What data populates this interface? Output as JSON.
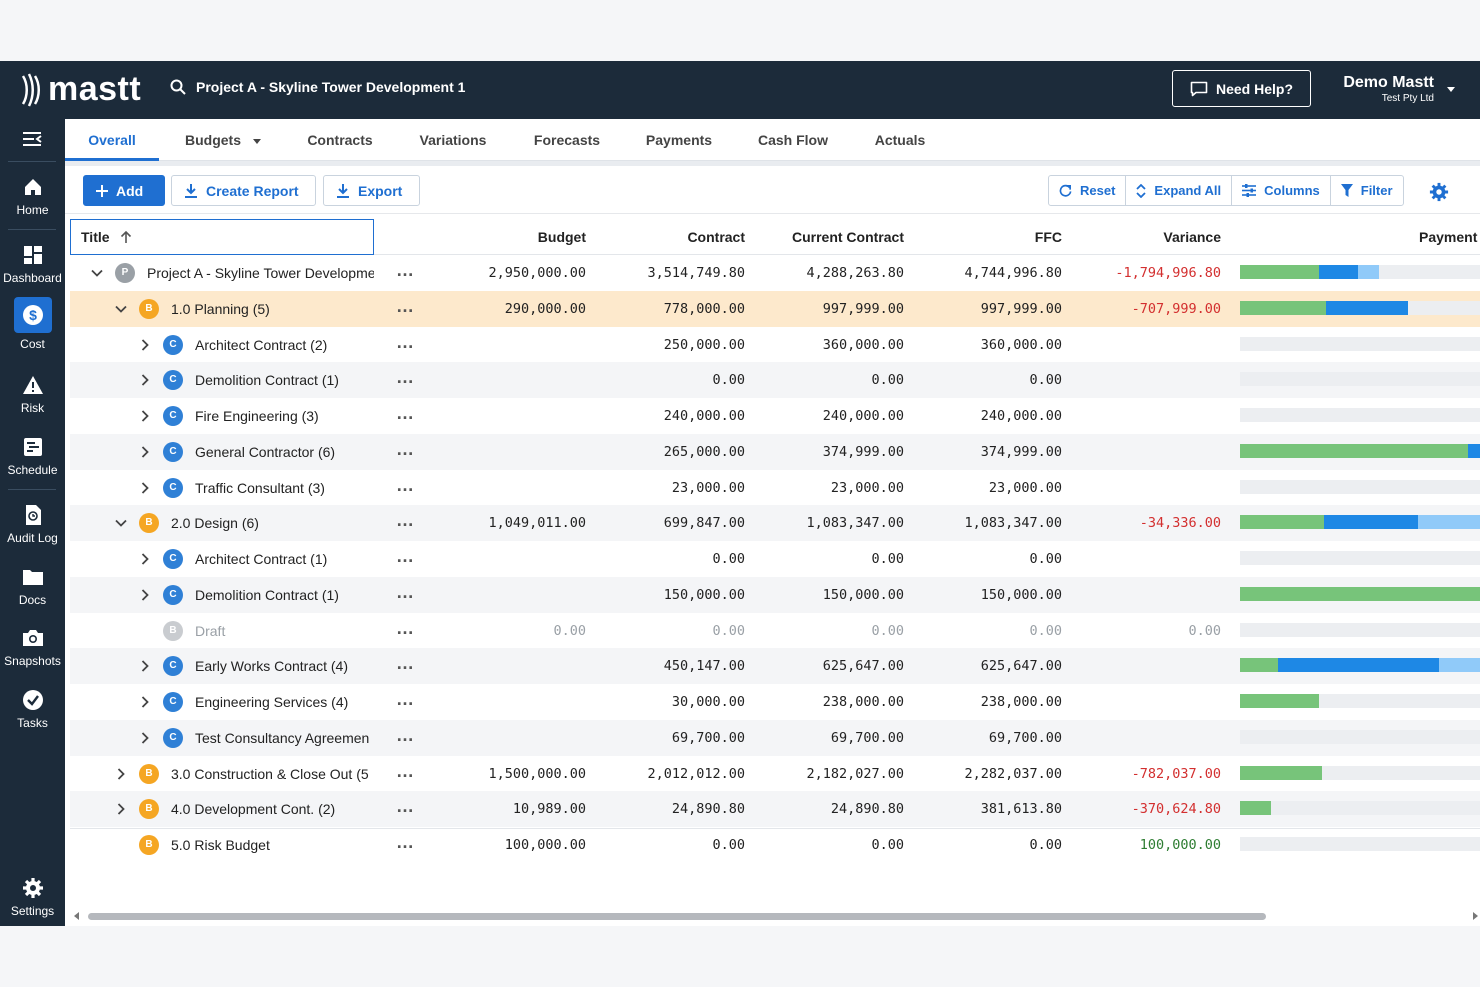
{
  "brand": {
    "logo_text": "mastt"
  },
  "header": {
    "project_name": "Project A - Skyline Tower Development 1",
    "help_label": "Need Help?",
    "user_name": "Demo Mastt",
    "user_org": "Test Pty Ltd"
  },
  "sidebar": {
    "items": [
      {
        "label": "Home",
        "icon": "home-icon"
      },
      {
        "label": "Dashboard",
        "icon": "dashboard-icon"
      },
      {
        "label": "Cost",
        "icon": "dollar-icon",
        "active": true
      },
      {
        "label": "Risk",
        "icon": "warning-icon"
      },
      {
        "label": "Schedule",
        "icon": "schedule-icon"
      },
      {
        "label": "Audit Log",
        "icon": "audit-log-icon"
      },
      {
        "label": "Docs",
        "icon": "folder-icon"
      },
      {
        "label": "Snapshots",
        "icon": "camera-icon"
      },
      {
        "label": "Tasks",
        "icon": "check-circle-icon"
      },
      {
        "label": "Settings",
        "icon": "gear-icon"
      }
    ]
  },
  "tabs": [
    {
      "label": "Overall",
      "active": true
    },
    {
      "label": "Budgets",
      "dropdown": true
    },
    {
      "label": "Contracts"
    },
    {
      "label": "Variations"
    },
    {
      "label": "Forecasts"
    },
    {
      "label": "Payments"
    },
    {
      "label": "Cash Flow"
    },
    {
      "label": "Actuals"
    }
  ],
  "toolbar": {
    "add_label": "Add",
    "create_report_label": "Create Report",
    "export_label": "Export",
    "reset_label": "Reset",
    "expand_all_label": "Expand All",
    "columns_label": "Columns",
    "filter_label": "Filter"
  },
  "colors": {
    "accent": "#1f6fd1",
    "bar_green": "#77c47a",
    "bar_blue": "#1e88e5",
    "bar_light_blue": "#90caf9",
    "negative": "#d32f2f",
    "positive": "#2e7d32"
  },
  "table": {
    "columns": [
      "Title",
      "Budget",
      "Contract",
      "Current Contract",
      "FFC",
      "Variance",
      "Payment"
    ],
    "rows": [
      {
        "level": 0,
        "chevron": "down",
        "badge": "P",
        "title": "Project A - Skyline Tower Developme",
        "budget": "2,950,000.00",
        "contract": "3,514,749.80",
        "current": "4,288,263.80",
        "ffc": "4,744,996.80",
        "variance": "-1,794,996.80",
        "variance_tone": "neg",
        "payment": [
          0.33,
          0.16,
          0.09
        ]
      },
      {
        "level": 1,
        "chevron": "down",
        "badge": "B",
        "title": "1.0 Planning  (5)",
        "budget": "290,000.00",
        "contract": "778,000.00",
        "current": "997,999.00",
        "ffc": "997,999.00",
        "variance": "-707,999.00",
        "variance_tone": "neg",
        "payment": [
          0.36,
          0.34,
          0.0
        ],
        "selected": true
      },
      {
        "level": 2,
        "chevron": "right",
        "badge": "C",
        "title": "Architect Contract  (2)",
        "budget": "",
        "contract": "250,000.00",
        "current": "360,000.00",
        "ffc": "360,000.00",
        "variance": "",
        "payment": [
          0,
          0,
          0
        ]
      },
      {
        "level": 2,
        "chevron": "right",
        "badge": "C",
        "title": "Demolition Contract  (1)",
        "budget": "",
        "contract": "0.00",
        "current": "0.00",
        "ffc": "0.00",
        "variance": "",
        "payment": [
          0,
          0,
          0
        ]
      },
      {
        "level": 2,
        "chevron": "right",
        "badge": "C",
        "title": "Fire Engineering  (3)",
        "budget": "",
        "contract": "240,000.00",
        "current": "240,000.00",
        "ffc": "240,000.00",
        "variance": "",
        "payment": [
          0,
          0,
          0
        ]
      },
      {
        "level": 2,
        "chevron": "right",
        "badge": "C",
        "title": "General Contractor  (6)",
        "budget": "",
        "contract": "265,000.00",
        "current": "374,999.00",
        "ffc": "374,999.00",
        "variance": "",
        "payment": [
          0.95,
          0.05,
          0
        ]
      },
      {
        "level": 2,
        "chevron": "right",
        "badge": "C",
        "title": "Traffic Consultant  (3)",
        "budget": "",
        "contract": "23,000.00",
        "current": "23,000.00",
        "ffc": "23,000.00",
        "variance": "",
        "payment": [
          0,
          0,
          0
        ]
      },
      {
        "level": 1,
        "chevron": "down",
        "badge": "B",
        "title": "2.0 Design  (6)",
        "budget": "1,049,011.00",
        "contract": "699,847.00",
        "current": "1,083,347.00",
        "ffc": "1,083,347.00",
        "variance": "-34,336.00",
        "variance_tone": "neg",
        "payment": [
          0.35,
          0.39,
          0.26
        ]
      },
      {
        "level": 2,
        "chevron": "right",
        "badge": "C",
        "title": "Architect Contract  (1)",
        "budget": "",
        "contract": "0.00",
        "current": "0.00",
        "ffc": "0.00",
        "variance": "",
        "payment": [
          0,
          0,
          0
        ]
      },
      {
        "level": 2,
        "chevron": "right",
        "badge": "C",
        "title": "Demolition Contract  (1)",
        "budget": "",
        "contract": "150,000.00",
        "current": "150,000.00",
        "ffc": "150,000.00",
        "variance": "",
        "payment": [
          1.0,
          0,
          0
        ]
      },
      {
        "level": 2,
        "chevron": "none",
        "badge": "B",
        "badge_style": "D",
        "title": "Draft",
        "muted": true,
        "budget": "0.00",
        "contract": "0.00",
        "current": "0.00",
        "ffc": "0.00",
        "variance": "0.00",
        "variance_tone": "muted",
        "payment": [
          0,
          0,
          0
        ]
      },
      {
        "level": 2,
        "chevron": "right",
        "badge": "C",
        "title": "Early Works Contract  (4)",
        "budget": "",
        "contract": "450,147.00",
        "current": "625,647.00",
        "ffc": "625,647.00",
        "variance": "",
        "payment": [
          0.16,
          0.67,
          0.17
        ]
      },
      {
        "level": 2,
        "chevron": "right",
        "badge": "C",
        "title": "Engineering Services  (4)",
        "budget": "",
        "contract": "30,000.00",
        "current": "238,000.00",
        "ffc": "238,000.00",
        "variance": "",
        "payment": [
          0.33,
          0,
          0
        ]
      },
      {
        "level": 2,
        "chevron": "right",
        "badge": "C",
        "title": "Test Consultancy Agreemen",
        "budget": "",
        "contract": "69,700.00",
        "current": "69,700.00",
        "ffc": "69,700.00",
        "variance": "",
        "payment": [
          0,
          0,
          0
        ]
      },
      {
        "level": 1,
        "chevron": "right",
        "badge": "B",
        "title": "3.0 Construction & Close Out  (5",
        "budget": "1,500,000.00",
        "contract": "2,012,012.00",
        "current": "2,182,027.00",
        "ffc": "2,282,037.00",
        "variance": "-782,037.00",
        "variance_tone": "neg",
        "payment": [
          0.34,
          0,
          0
        ]
      },
      {
        "level": 1,
        "chevron": "right",
        "badge": "B",
        "title": "4.0 Development Cont.  (2)",
        "budget": "10,989.00",
        "contract": "24,890.80",
        "current": "24,890.80",
        "ffc": "381,613.80",
        "variance": "-370,624.80",
        "variance_tone": "neg",
        "payment": [
          0.13,
          0,
          0
        ]
      },
      {
        "level": 1,
        "chevron": "none",
        "badge": "B",
        "title": "5.0 Risk Budget",
        "budget": "100,000.00",
        "contract": "0.00",
        "current": "0.00",
        "ffc": "0.00",
        "variance": "100,000.00",
        "variance_tone": "pos",
        "payment": [
          0,
          0,
          0
        ]
      }
    ]
  }
}
